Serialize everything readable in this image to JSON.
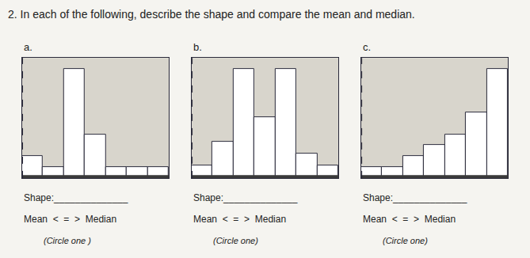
{
  "title": "2. In each of the following, describe the shape and compare the mean and median.",
  "chart_data": [
    {
      "type": "bar",
      "title": "a.",
      "categories": [
        null,
        null,
        null,
        null,
        null,
        null,
        null
      ],
      "values": [
        2,
        1,
        10,
        4,
        1,
        1,
        1
      ],
      "color": "white",
      "ylim": [
        0,
        11
      ],
      "yticks": [],
      "grid": false,
      "tick_labels": false,
      "annotations": [
        "Shape:______________",
        "Mean  <  =  >  Median",
        "(Circle one )"
      ]
    },
    {
      "type": "bar",
      "title": "b.",
      "categories": [
        null,
        null,
        null,
        null,
        null,
        null,
        null
      ],
      "values": [
        1,
        3,
        9,
        5,
        9,
        2,
        1
      ],
      "color": "white",
      "ylim": [
        0,
        9.9
      ],
      "yticks": [],
      "grid": false,
      "tick_labels": false,
      "annotations": [
        "Shape:______________",
        "Mean  <  =  >  Median",
        "(Circle one)"
      ]
    },
    {
      "type": "bar",
      "title": "c.",
      "categories": [
        null,
        null,
        null,
        null,
        null,
        null,
        null
      ],
      "values": [
        1,
        1,
        2,
        3,
        4,
        6,
        10
      ],
      "color": "white",
      "ylim": [
        0,
        11
      ],
      "yticks": [],
      "grid": false,
      "tick_labels": false,
      "annotations": [
        "Shape:______________",
        "Mean  <  =  >  Median",
        "(Circle one)"
      ]
    }
  ]
}
